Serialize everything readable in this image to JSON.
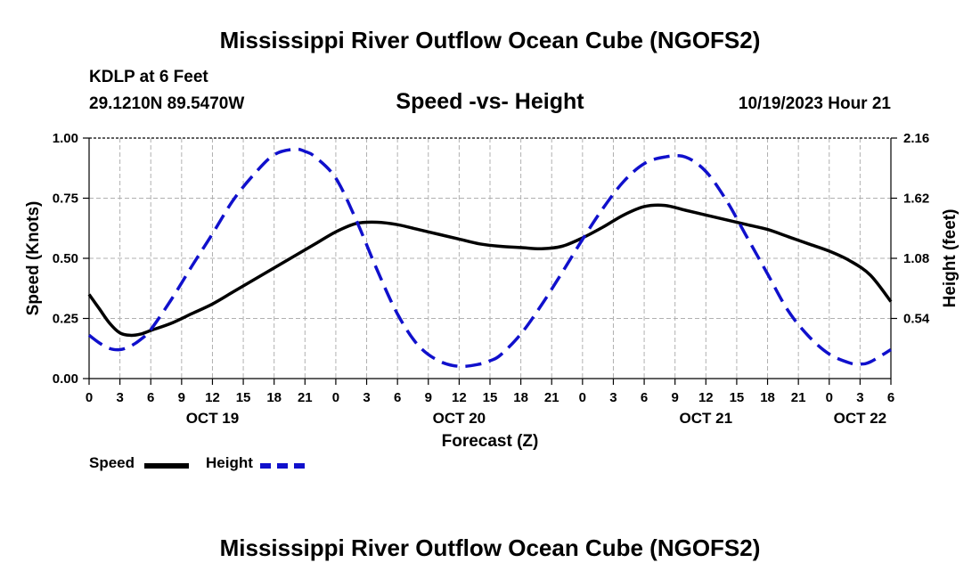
{
  "page": {
    "title_top": "Mississippi River Outflow Ocean Cube (NGOFS2)",
    "title_bottom": "Mississippi River Outflow Ocean Cube (NGOFS2)",
    "station": "KDLP at 6 Feet",
    "coords": "29.1210N  89.5470W",
    "chart_title": "Speed -vs- Height",
    "timestamp": "10/19/2023 Hour 21"
  },
  "legend": {
    "speed_label": "Speed",
    "height_label": "Height"
  },
  "colors": {
    "speed": "#000000",
    "height": "#1010cc",
    "grid": "#b0b0b0"
  },
  "chart_data": {
    "type": "line",
    "title": "Speed -vs- Height",
    "xlabel": "Forecast (Z)",
    "ylabel": "Speed (Knots)",
    "y2label": "Height (feet)",
    "xlim": [
      0,
      78
    ],
    "ylim": [
      0,
      1.0
    ],
    "y2lim": [
      0,
      2.16
    ],
    "grid": true,
    "legend_position": "bottom-left",
    "x_ticks": [
      0,
      3,
      6,
      9,
      12,
      15,
      18,
      21,
      24,
      27,
      30,
      33,
      36,
      39,
      42,
      45,
      48,
      51,
      54,
      57,
      60,
      63,
      66,
      69,
      72,
      75,
      78
    ],
    "x_tick_labels": [
      "0",
      "3",
      "6",
      "9",
      "12",
      "15",
      "18",
      "21",
      "0",
      "3",
      "6",
      "9",
      "12",
      "15",
      "18",
      "21",
      "0",
      "3",
      "6",
      "9",
      "12",
      "15",
      "18",
      "21",
      "0",
      "3",
      "6"
    ],
    "y_ticks": [
      0,
      0.25,
      0.5,
      0.75,
      1.0
    ],
    "y_tick_labels": [
      "0.00",
      "0.25",
      "0.50",
      "0.75",
      "1.00"
    ],
    "y2_ticks": [
      0.54,
      1.08,
      1.62,
      2.16
    ],
    "y2_tick_labels": [
      "0.54",
      "1.08",
      "1.62",
      "2.16"
    ],
    "date_labels": [
      {
        "x": 12,
        "label": "OCT 19"
      },
      {
        "x": 36,
        "label": "OCT 20"
      },
      {
        "x": 60,
        "label": "OCT 21"
      },
      {
        "x": 75,
        "label": "OCT 22"
      }
    ],
    "series": [
      {
        "name": "Speed",
        "axis": "left",
        "style": "solid",
        "x": [
          0,
          1,
          2,
          3,
          4,
          5,
          6,
          8,
          10,
          12,
          14,
          16,
          18,
          20,
          22,
          24,
          26,
          28,
          30,
          32,
          34,
          36,
          38,
          40,
          42,
          44,
          46,
          48,
          50,
          52,
          54,
          56,
          58,
          60,
          62,
          64,
          66,
          68,
          70,
          72,
          74,
          76,
          78
        ],
        "values": [
          0.35,
          0.29,
          0.23,
          0.19,
          0.18,
          0.185,
          0.2,
          0.23,
          0.27,
          0.31,
          0.36,
          0.41,
          0.46,
          0.51,
          0.56,
          0.61,
          0.645,
          0.65,
          0.64,
          0.62,
          0.6,
          0.58,
          0.56,
          0.55,
          0.545,
          0.54,
          0.55,
          0.585,
          0.63,
          0.68,
          0.715,
          0.72,
          0.7,
          0.68,
          0.66,
          0.64,
          0.62,
          0.59,
          0.56,
          0.53,
          0.49,
          0.43,
          0.32
        ]
      },
      {
        "name": "Height",
        "axis": "right",
        "style": "dashed",
        "x": [
          0,
          1,
          2,
          3,
          4,
          5,
          6,
          8,
          10,
          12,
          14,
          16,
          18,
          20,
          21,
          22,
          24,
          26,
          28,
          30,
          32,
          34,
          36,
          38,
          39,
          40,
          42,
          44,
          46,
          48,
          50,
          52,
          54,
          56,
          58,
          60,
          62,
          64,
          66,
          68,
          70,
          72,
          74,
          75,
          76,
          78
        ],
        "values": [
          0.39,
          0.32,
          0.27,
          0.26,
          0.29,
          0.35,
          0.44,
          0.71,
          1.01,
          1.3,
          1.6,
          1.83,
          2.01,
          2.06,
          2.04,
          1.99,
          1.8,
          1.42,
          0.98,
          0.58,
          0.3,
          0.16,
          0.11,
          0.13,
          0.16,
          0.21,
          0.4,
          0.66,
          0.95,
          1.25,
          1.53,
          1.77,
          1.93,
          1.99,
          1.99,
          1.86,
          1.6,
          1.27,
          0.94,
          0.61,
          0.38,
          0.22,
          0.14,
          0.13,
          0.15,
          0.26
        ]
      }
    ]
  }
}
